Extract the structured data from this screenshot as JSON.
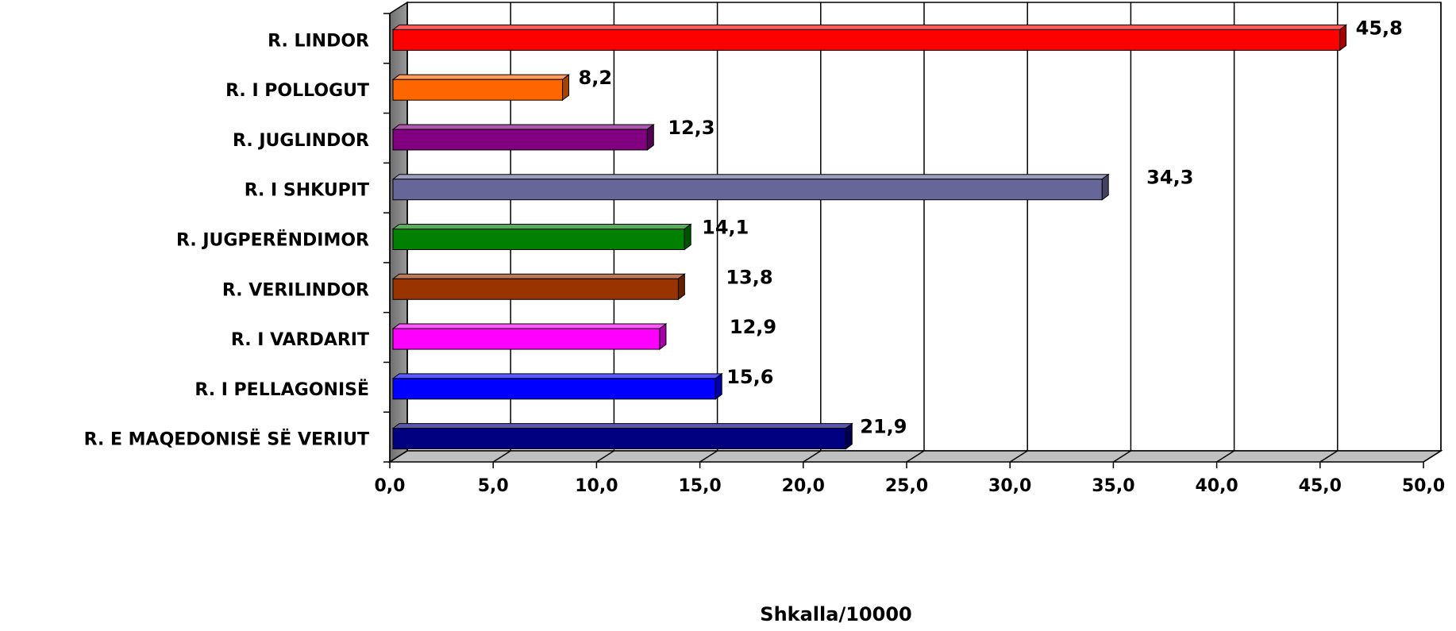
{
  "chart_data": {
    "type": "bar",
    "orientation": "horizontal",
    "categories": [
      "R. LINDOR",
      "R. I POLLOGUT",
      "R. JUGLINDOR",
      "R. I SHKUPIT",
      "R. JUGPERËNDIMOR",
      "R. VERILINDOR",
      "R. I VARDARIT",
      "R. I PELLAGONISË",
      "R. E MAQEDONISË SË VERIUT"
    ],
    "values": [
      45.8,
      8.2,
      12.3,
      34.3,
      14.1,
      13.8,
      12.9,
      15.6,
      21.9
    ],
    "value_labels": [
      "45,8",
      "8,2",
      "12,3",
      "34,3",
      "14,1",
      "13,8",
      "12,9",
      "15,6",
      "21,9"
    ],
    "colors": [
      "#ff0000",
      "#ff6600",
      "#800080",
      "#666699",
      "#008000",
      "#993300",
      "#ff00ff",
      "#0000ff",
      "#000080"
    ],
    "xlim": [
      0,
      50
    ],
    "x_ticks": [
      "0,0",
      "5,0",
      "10,0",
      "15,0",
      "20,0",
      "25,0",
      "30,0",
      "35,0",
      "40,0",
      "45,0",
      "50,0"
    ],
    "xlabel": "Shkalla/10000",
    "ylabel": "",
    "title": "",
    "grid": true,
    "style": "3d"
  }
}
